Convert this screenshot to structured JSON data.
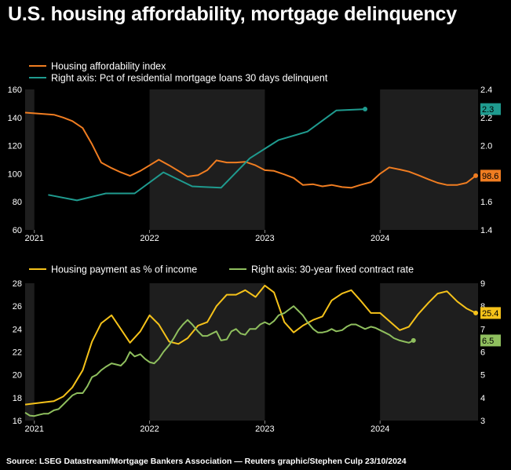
{
  "page": {
    "title": "U.S. housing affordability, mortgage delinquency",
    "source": "Source: LSEG Datastream/Mortgage Bankers Association — Reuters graphic/Stephen Culp 23/10/2024"
  },
  "colors": {
    "background": "#000000",
    "panel_band": "#1e1e1e",
    "orange": "#f07d21",
    "teal": "#1f9b8f",
    "yellow": "#f5c21a",
    "green": "#8fbf5e",
    "axis_text": "#ffffff"
  },
  "chart_data": [
    {
      "type": "line",
      "legend_position": "top-left",
      "x_tick_labels": [
        "2021",
        "2022",
        "2023",
        "2024"
      ],
      "x_ticks": [
        2021.0,
        2022.0,
        2023.0,
        2024.0
      ],
      "xlim": [
        2020.92,
        2024.85
      ],
      "ylim": [
        60,
        160
      ],
      "y_ticks": [
        60,
        80,
        100,
        120,
        140,
        160
      ],
      "y2lim": [
        1.4,
        2.4
      ],
      "y2_ticks": [
        "1.4",
        "1.6",
        "1.8",
        "2.0",
        "2.2",
        "2.4"
      ],
      "grid": false,
      "series": [
        {
          "name": "Housing affordability index",
          "axis": "left",
          "color_key": "orange",
          "end_label": "98.6",
          "end_marker": true,
          "points": [
            [
              2020.92,
              143.5
            ],
            [
              2021.0,
              143.0
            ],
            [
              2021.08,
              142.5
            ],
            [
              2021.17,
              142.0
            ],
            [
              2021.25,
              140.0
            ],
            [
              2021.33,
              137.5
            ],
            [
              2021.42,
              132.5
            ],
            [
              2021.5,
              121.0
            ],
            [
              2021.58,
              108.0
            ],
            [
              2021.67,
              104.0
            ],
            [
              2021.75,
              101.0
            ],
            [
              2021.83,
              98.5
            ],
            [
              2021.92,
              102.0
            ],
            [
              2022.0,
              106.0
            ],
            [
              2022.08,
              110.0
            ],
            [
              2022.17,
              106.0
            ],
            [
              2022.25,
              102.0
            ],
            [
              2022.33,
              98.0
            ],
            [
              2022.42,
              99.0
            ],
            [
              2022.5,
              102.5
            ],
            [
              2022.58,
              109.5
            ],
            [
              2022.67,
              108.0
            ],
            [
              2022.75,
              108.0
            ],
            [
              2022.83,
              108.5
            ],
            [
              2022.92,
              106.0
            ],
            [
              2023.0,
              102.5
            ],
            [
              2023.08,
              102.0
            ],
            [
              2023.17,
              99.5
            ],
            [
              2023.25,
              97.0
            ],
            [
              2023.33,
              92.0
            ],
            [
              2023.42,
              92.5
            ],
            [
              2023.5,
              91.0
            ],
            [
              2023.58,
              92.0
            ],
            [
              2023.67,
              90.5
            ],
            [
              2023.75,
              90.0
            ],
            [
              2023.83,
              92.0
            ],
            [
              2023.92,
              94.0
            ],
            [
              2024.0,
              100.0
            ],
            [
              2024.08,
              104.5
            ],
            [
              2024.17,
              103.0
            ],
            [
              2024.25,
              101.5
            ],
            [
              2024.33,
              99.0
            ],
            [
              2024.42,
              96.0
            ],
            [
              2024.5,
              93.5
            ],
            [
              2024.58,
              92.0
            ],
            [
              2024.67,
              92.0
            ],
            [
              2024.75,
              93.5
            ],
            [
              2024.83,
              98.6
            ]
          ]
        },
        {
          "name": "Right axis: Pct of residential mortgage loans 30 days delinquent",
          "axis": "right",
          "color_key": "teal",
          "end_label": "2.3",
          "end_marker": true,
          "points": [
            [
              2021.12,
              1.65
            ],
            [
              2021.37,
              1.61
            ],
            [
              2021.62,
              1.66
            ],
            [
              2021.87,
              1.66
            ],
            [
              2022.12,
              1.81
            ],
            [
              2022.37,
              1.71
            ],
            [
              2022.62,
              1.7
            ],
            [
              2022.87,
              1.91
            ],
            [
              2023.12,
              2.04
            ],
            [
              2023.37,
              2.1
            ],
            [
              2023.62,
              2.25
            ],
            [
              2023.87,
              2.26
            ]
          ]
        }
      ]
    },
    {
      "type": "line",
      "legend_position": "top-left",
      "x_tick_labels": [
        "2021",
        "2022",
        "2023",
        "2024"
      ],
      "x_ticks": [
        2021.0,
        2022.0,
        2023.0,
        2024.0
      ],
      "xlim": [
        2020.92,
        2024.85
      ],
      "ylim": [
        16,
        28
      ],
      "y_ticks": [
        16,
        18,
        20,
        22,
        24,
        26,
        28
      ],
      "y2lim": [
        3,
        9
      ],
      "y2_ticks": [
        "3",
        "4",
        "5",
        "6",
        "7",
        "8",
        "9"
      ],
      "grid": false,
      "series": [
        {
          "name": "Housing payment as % of income",
          "axis": "left",
          "color_key": "yellow",
          "end_label": "25.4",
          "end_marker": true,
          "points": [
            [
              2020.92,
              17.4
            ],
            [
              2021.08,
              17.6
            ],
            [
              2021.17,
              17.7
            ],
            [
              2021.25,
              18.1
            ],
            [
              2021.33,
              18.9
            ],
            [
              2021.42,
              20.4
            ],
            [
              2021.5,
              22.9
            ],
            [
              2021.58,
              24.5
            ],
            [
              2021.67,
              25.2
            ],
            [
              2021.75,
              24.0
            ],
            [
              2021.83,
              22.8
            ],
            [
              2021.92,
              23.8
            ],
            [
              2022.0,
              25.2
            ],
            [
              2022.08,
              24.4
            ],
            [
              2022.17,
              22.9
            ],
            [
              2022.25,
              22.7
            ],
            [
              2022.33,
              23.2
            ],
            [
              2022.42,
              24.3
            ],
            [
              2022.5,
              24.6
            ],
            [
              2022.58,
              26.0
            ],
            [
              2022.67,
              27.0
            ],
            [
              2022.75,
              27.0
            ],
            [
              2022.83,
              27.4
            ],
            [
              2022.92,
              26.8
            ],
            [
              2023.0,
              27.8
            ],
            [
              2023.08,
              27.2
            ],
            [
              2023.17,
              24.6
            ],
            [
              2023.25,
              23.7
            ],
            [
              2023.33,
              24.3
            ],
            [
              2023.42,
              24.8
            ],
            [
              2023.5,
              25.1
            ],
            [
              2023.58,
              26.5
            ],
            [
              2023.67,
              27.1
            ],
            [
              2023.75,
              27.4
            ],
            [
              2023.83,
              26.5
            ],
            [
              2023.92,
              25.4
            ],
            [
              2024.0,
              25.4
            ],
            [
              2024.08,
              24.7
            ],
            [
              2024.17,
              23.9
            ],
            [
              2024.25,
              24.2
            ],
            [
              2024.33,
              25.3
            ],
            [
              2024.42,
              26.3
            ],
            [
              2024.5,
              27.1
            ],
            [
              2024.58,
              27.3
            ],
            [
              2024.67,
              26.4
            ],
            [
              2024.75,
              25.8
            ],
            [
              2024.83,
              25.4
            ]
          ]
        },
        {
          "name": "Right axis: 30-year fixed contract rate",
          "axis": "right",
          "color_key": "green",
          "end_label": "6.5",
          "end_marker": true,
          "points": [
            [
              2020.92,
              3.35
            ],
            [
              2020.96,
              3.22
            ],
            [
              2021.0,
              3.2
            ],
            [
              2021.04,
              3.25
            ],
            [
              2021.08,
              3.3
            ],
            [
              2021.12,
              3.3
            ],
            [
              2021.17,
              3.45
            ],
            [
              2021.21,
              3.5
            ],
            [
              2021.25,
              3.7
            ],
            [
              2021.29,
              3.9
            ],
            [
              2021.33,
              4.1
            ],
            [
              2021.37,
              4.2
            ],
            [
              2021.42,
              4.2
            ],
            [
              2021.46,
              4.5
            ],
            [
              2021.5,
              4.9
            ],
            [
              2021.54,
              5.0
            ],
            [
              2021.58,
              5.2
            ],
            [
              2021.62,
              5.35
            ],
            [
              2021.67,
              5.5
            ],
            [
              2021.71,
              5.45
            ],
            [
              2021.75,
              5.4
            ],
            [
              2021.79,
              5.6
            ],
            [
              2021.83,
              6.0
            ],
            [
              2021.87,
              5.8
            ],
            [
              2021.92,
              5.9
            ],
            [
              2021.96,
              5.7
            ],
            [
              2022.0,
              5.55
            ],
            [
              2022.04,
              5.5
            ],
            [
              2022.08,
              5.7
            ],
            [
              2022.12,
              6.0
            ],
            [
              2022.17,
              6.3
            ],
            [
              2022.21,
              6.6
            ],
            [
              2022.25,
              6.95
            ],
            [
              2022.29,
              7.2
            ],
            [
              2022.33,
              7.4
            ],
            [
              2022.37,
              7.2
            ],
            [
              2022.42,
              6.9
            ],
            [
              2022.46,
              6.7
            ],
            [
              2022.5,
              6.7
            ],
            [
              2022.54,
              6.8
            ],
            [
              2022.58,
              6.9
            ],
            [
              2022.62,
              6.5
            ],
            [
              2022.67,
              6.55
            ],
            [
              2022.71,
              6.9
            ],
            [
              2022.75,
              7.0
            ],
            [
              2022.79,
              6.8
            ],
            [
              2022.83,
              6.75
            ],
            [
              2022.87,
              7.0
            ],
            [
              2022.92,
              7.0
            ],
            [
              2022.96,
              7.2
            ],
            [
              2023.0,
              7.3
            ],
            [
              2023.04,
              7.2
            ],
            [
              2023.08,
              7.35
            ],
            [
              2023.12,
              7.6
            ],
            [
              2023.17,
              7.7
            ],
            [
              2023.21,
              7.85
            ],
            [
              2023.25,
              8.0
            ],
            [
              2023.29,
              7.8
            ],
            [
              2023.33,
              7.6
            ],
            [
              2023.37,
              7.3
            ],
            [
              2023.42,
              7.0
            ],
            [
              2023.46,
              6.85
            ],
            [
              2023.5,
              6.85
            ],
            [
              2023.54,
              6.9
            ],
            [
              2023.58,
              7.0
            ],
            [
              2023.62,
              6.9
            ],
            [
              2023.67,
              6.95
            ],
            [
              2023.71,
              7.1
            ],
            [
              2023.75,
              7.2
            ],
            [
              2023.79,
              7.2
            ],
            [
              2023.83,
              7.1
            ],
            [
              2023.87,
              7.0
            ],
            [
              2023.92,
              7.1
            ],
            [
              2023.96,
              7.05
            ],
            [
              2024.0,
              6.95
            ],
            [
              2024.04,
              6.85
            ],
            [
              2024.08,
              6.75
            ],
            [
              2024.12,
              6.6
            ],
            [
              2024.17,
              6.5
            ],
            [
              2024.21,
              6.45
            ],
            [
              2024.25,
              6.4
            ],
            [
              2024.29,
              6.5
            ]
          ]
        }
      ]
    }
  ]
}
